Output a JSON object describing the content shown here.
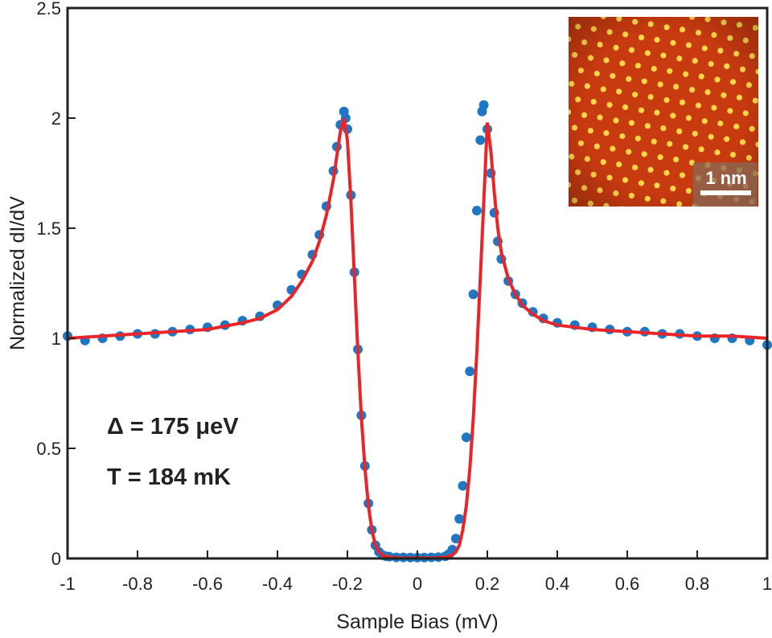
{
  "chart_data": {
    "type": "scatter",
    "xlabel": "Sample Bias (mV)",
    "ylabel": "Normalized dI/dV",
    "xlim": [
      -1,
      1
    ],
    "ylim": [
      0,
      2.5
    ],
    "xticks": [
      "-1",
      "-0.8",
      "-0.6",
      "-0.4",
      "-0.2",
      "0",
      "0.2",
      "0.4",
      "0.6",
      "0.8",
      "1"
    ],
    "yticks": [
      "0",
      "0.5",
      "1",
      "1.5",
      "2",
      "2.5"
    ],
    "grid": false,
    "legend": "none",
    "annotations": [
      "Δ = 175 μeV",
      "T = 184 mK"
    ],
    "colors": {
      "data_points": "#1f77c4",
      "fit_line": "#e8262a",
      "axes": "#222222"
    },
    "series": [
      {
        "style": "markers",
        "x": [
          -1.0,
          -0.95,
          -0.9,
          -0.85,
          -0.8,
          -0.75,
          -0.7,
          -0.65,
          -0.6,
          -0.55,
          -0.5,
          -0.45,
          -0.4,
          -0.36,
          -0.33,
          -0.3,
          -0.28,
          -0.26,
          -0.24,
          -0.23,
          -0.22,
          -0.21,
          -0.205,
          -0.2,
          -0.19,
          -0.18,
          -0.17,
          -0.16,
          -0.15,
          -0.14,
          -0.13,
          -0.12,
          -0.11,
          -0.1,
          -0.09,
          -0.08,
          -0.06,
          -0.04,
          -0.02,
          0.0,
          0.02,
          0.04,
          0.06,
          0.08,
          0.09,
          0.1,
          0.11,
          0.12,
          0.13,
          0.14,
          0.15,
          0.16,
          0.17,
          0.18,
          0.185,
          0.19,
          0.2,
          0.21,
          0.22,
          0.23,
          0.24,
          0.26,
          0.28,
          0.3,
          0.33,
          0.36,
          0.4,
          0.45,
          0.5,
          0.55,
          0.6,
          0.65,
          0.7,
          0.75,
          0.8,
          0.85,
          0.9,
          0.95,
          1.0
        ],
        "y": [
          1.01,
          0.99,
          1.0,
          1.01,
          1.02,
          1.02,
          1.03,
          1.04,
          1.05,
          1.06,
          1.08,
          1.1,
          1.15,
          1.22,
          1.29,
          1.38,
          1.47,
          1.6,
          1.76,
          1.87,
          1.97,
          2.03,
          2.0,
          1.95,
          1.65,
          1.3,
          0.95,
          0.65,
          0.42,
          0.25,
          0.13,
          0.06,
          0.03,
          0.015,
          0.01,
          0.008,
          0.005,
          0.005,
          0.004,
          0.004,
          0.004,
          0.005,
          0.006,
          0.01,
          0.02,
          0.04,
          0.09,
          0.18,
          0.33,
          0.55,
          0.85,
          1.2,
          1.58,
          1.9,
          2.03,
          2.06,
          1.95,
          1.75,
          1.57,
          1.44,
          1.36,
          1.26,
          1.2,
          1.16,
          1.12,
          1.09,
          1.07,
          1.06,
          1.05,
          1.04,
          1.03,
          1.03,
          1.02,
          1.02,
          1.01,
          1.0,
          1.0,
          0.99,
          0.97
        ]
      },
      {
        "style": "line",
        "x": [
          -1.0,
          -0.9,
          -0.8,
          -0.7,
          -0.6,
          -0.5,
          -0.45,
          -0.4,
          -0.36,
          -0.33,
          -0.3,
          -0.28,
          -0.26,
          -0.24,
          -0.23,
          -0.22,
          -0.21,
          -0.2,
          -0.19,
          -0.18,
          -0.17,
          -0.16,
          -0.15,
          -0.14,
          -0.13,
          -0.12,
          -0.11,
          -0.1,
          -0.08,
          -0.05,
          0.0,
          0.05,
          0.08,
          0.1,
          0.11,
          0.12,
          0.13,
          0.14,
          0.15,
          0.16,
          0.17,
          0.18,
          0.19,
          0.2,
          0.21,
          0.22,
          0.23,
          0.24,
          0.26,
          0.28,
          0.3,
          0.33,
          0.36,
          0.4,
          0.45,
          0.5,
          0.6,
          0.7,
          0.8,
          0.9,
          1.0
        ],
        "y": [
          1.0,
          1.01,
          1.02,
          1.03,
          1.04,
          1.07,
          1.09,
          1.13,
          1.19,
          1.26,
          1.35,
          1.44,
          1.56,
          1.72,
          1.83,
          1.94,
          2.0,
          1.9,
          1.62,
          1.28,
          0.94,
          0.64,
          0.41,
          0.24,
          0.13,
          0.06,
          0.03,
          0.015,
          0.006,
          0.003,
          0.002,
          0.003,
          0.006,
          0.015,
          0.03,
          0.06,
          0.13,
          0.24,
          0.41,
          0.64,
          0.94,
          1.28,
          1.62,
          1.98,
          1.85,
          1.66,
          1.5,
          1.39,
          1.27,
          1.2,
          1.15,
          1.11,
          1.08,
          1.06,
          1.05,
          1.04,
          1.03,
          1.02,
          1.01,
          1.01,
          1.0
        ]
      }
    ],
    "inset": {
      "scale_bar_label": "1 nm",
      "colors": {
        "dark": "#7a1606",
        "mid": "#c83a10",
        "bright": "#ffd84a"
      }
    }
  }
}
